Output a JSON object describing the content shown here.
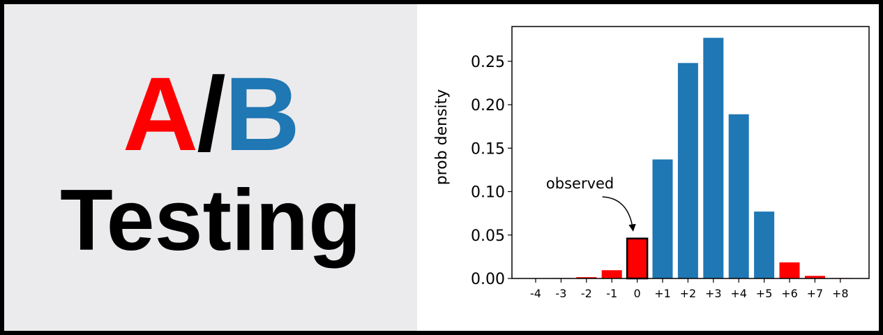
{
  "banner": {
    "title_a": "A",
    "title_slash": "/",
    "title_b": "B",
    "subtitle": "Testing",
    "colors": {
      "a": "#ff0000",
      "slash": "#000000",
      "b": "#1f77b4",
      "left_background": "#ebebed"
    }
  },
  "chart_data": {
    "type": "bar",
    "title": "",
    "xlabel": "",
    "ylabel": "prob density",
    "categories": [
      "-4",
      "-3",
      "-2",
      "-1",
      "0",
      "+1",
      "+2",
      "+3",
      "+4",
      "+5",
      "+6",
      "+7",
      "+8"
    ],
    "values": [
      0.0002,
      0.0005,
      0.0015,
      0.0095,
      0.046,
      0.137,
      0.248,
      0.277,
      0.189,
      0.077,
      0.0185,
      0.003,
      0.0005
    ],
    "bar_colors": [
      "#ff0000",
      "#ff0000",
      "#ff0000",
      "#ff0000",
      "#ff0000",
      "#1f77b4",
      "#1f77b4",
      "#1f77b4",
      "#1f77b4",
      "#1f77b4",
      "#ff0000",
      "#ff0000",
      "#ff0000"
    ],
    "highlighted_category": "0",
    "ylim": [
      0,
      0.29
    ],
    "yticks": [
      0.0,
      0.05,
      0.1,
      0.15,
      0.2,
      0.25
    ],
    "ytick_labels": [
      "0.00",
      "0.05",
      "0.10",
      "0.15",
      "0.20",
      "0.25"
    ],
    "grid": false,
    "annotation": {
      "text": "observed",
      "target_category": "0"
    }
  }
}
